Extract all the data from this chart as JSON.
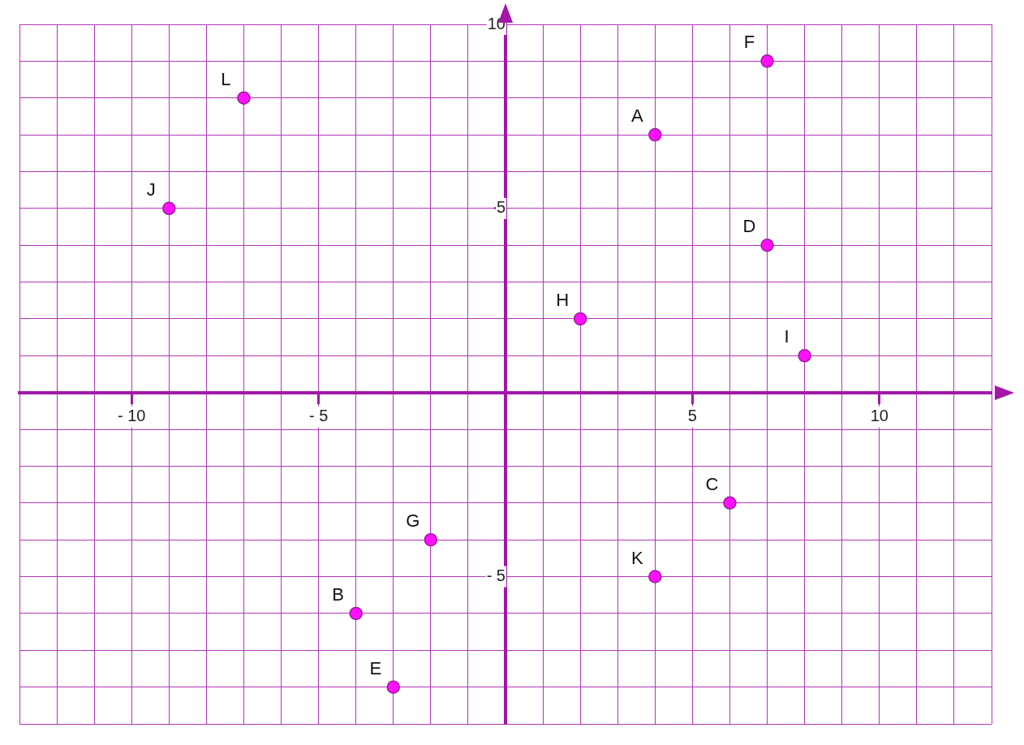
{
  "chart_data": {
    "type": "scatter",
    "marker": "circle",
    "grid": true,
    "legend": false,
    "xlim": [
      -13,
      13
    ],
    "ylim": [
      -9,
      10
    ],
    "xticks": [
      {
        "value": -13,
        "label": null
      },
      {
        "value": -12,
        "label": null
      },
      {
        "value": -11,
        "label": null
      },
      {
        "value": -10,
        "label": "- 10"
      },
      {
        "value": -9,
        "label": null
      },
      {
        "value": -8,
        "label": null
      },
      {
        "value": -7,
        "label": null
      },
      {
        "value": -6,
        "label": null
      },
      {
        "value": -5,
        "label": "- 5"
      },
      {
        "value": -4,
        "label": null
      },
      {
        "value": -3,
        "label": null
      },
      {
        "value": -2,
        "label": null
      },
      {
        "value": -1,
        "label": null
      },
      {
        "value": 0,
        "label": null
      },
      {
        "value": 1,
        "label": null
      },
      {
        "value": 2,
        "label": null
      },
      {
        "value": 3,
        "label": null
      },
      {
        "value": 4,
        "label": null
      },
      5,
      {
        "value": 6,
        "label": null
      },
      {
        "value": 7,
        "label": null
      },
      {
        "value": 8,
        "label": null
      },
      {
        "value": 9,
        "label": null
      },
      10,
      {
        "value": 11,
        "label": null
      },
      {
        "value": 12,
        "label": null
      },
      {
        "value": 13,
        "label": null
      }
    ],
    "yticks": [
      {
        "value": -9,
        "label": null
      },
      {
        "value": -8,
        "label": null
      },
      {
        "value": -7,
        "label": null
      },
      {
        "value": -6,
        "label": null
      },
      {
        "value": -5,
        "label": "- 5"
      },
      {
        "value": -4,
        "label": null
      },
      {
        "value": -3,
        "label": null
      },
      {
        "value": -2,
        "label": null
      },
      {
        "value": -1,
        "label": null
      },
      {
        "value": 0,
        "label": null
      },
      {
        "value": 1,
        "label": null
      },
      {
        "value": 2,
        "label": null
      },
      {
        "value": 3,
        "label": null
      },
      {
        "value": 4,
        "label": null
      },
      5,
      {
        "value": 6,
        "label": null
      },
      {
        "value": 7,
        "label": null
      },
      {
        "value": 8,
        "label": null
      },
      {
        "value": 9,
        "label": null
      },
      10
    ],
    "series": [
      {
        "color": "#ff10ff",
        "x": [
          4,
          7,
          -7,
          -9,
          7,
          2,
          8,
          6,
          -2,
          4,
          -4,
          -3
        ],
        "values": [
          7,
          9,
          8,
          5,
          4,
          2,
          1,
          -3,
          -4,
          -5,
          -6,
          -8
        ],
        "value_labels": [
          "A",
          "F",
          "L",
          "J",
          "D",
          "H",
          "I",
          "C",
          "G",
          "K",
          "B",
          "E"
        ]
      }
    ]
  }
}
